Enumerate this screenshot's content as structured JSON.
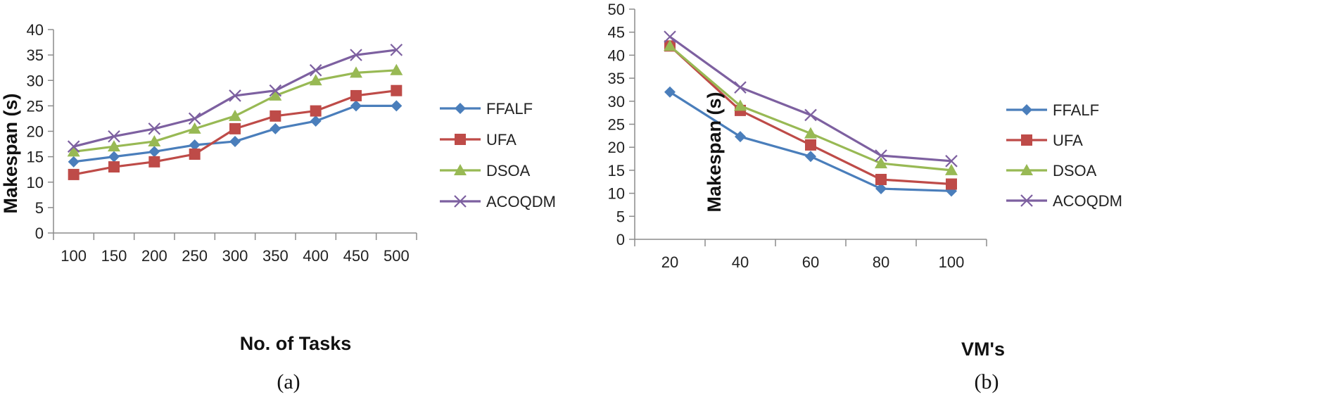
{
  "colors": {
    "FFALF": "#4a7ebb",
    "UFA": "#be4b48",
    "DSOA": "#98b954",
    "ACOQDM": "#7d60a0"
  },
  "chart_data": [
    {
      "type": "line",
      "caption": "(a)",
      "xlabel": "No. of Tasks",
      "ylabel": "Makespan (s)",
      "categories": [
        "100",
        "150",
        "200",
        "250",
        "300",
        "350",
        "400",
        "450",
        "500"
      ],
      "ylim": [
        0,
        40
      ],
      "yticks": [
        "0",
        "5",
        "10",
        "15",
        "20",
        "25",
        "30",
        "35",
        "40"
      ],
      "legend_position": "right",
      "grid": false,
      "series": [
        {
          "name": "FFALF",
          "marker": "diamond",
          "values": [
            14,
            15,
            16,
            17.3,
            18,
            20.5,
            22,
            25,
            25
          ]
        },
        {
          "name": "UFA",
          "marker": "square",
          "values": [
            11.5,
            13,
            14,
            15.5,
            20.5,
            23,
            24,
            27,
            28
          ]
        },
        {
          "name": "DSOA",
          "marker": "triangle",
          "values": [
            16,
            17,
            18,
            20.5,
            23,
            27,
            30,
            31.5,
            32
          ]
        },
        {
          "name": "ACOQDM",
          "marker": "x",
          "values": [
            17,
            19,
            20.5,
            22.5,
            27,
            28,
            32,
            35,
            36
          ]
        }
      ]
    },
    {
      "type": "line",
      "caption": "(b)",
      "xlabel": "VM's",
      "ylabel": "Makespan (s)",
      "categories": [
        "20",
        "40",
        "60",
        "80",
        "100"
      ],
      "ylim": [
        0,
        50
      ],
      "yticks": [
        "0",
        "5",
        "10",
        "15",
        "20",
        "25",
        "30",
        "35",
        "40",
        "45",
        "50"
      ],
      "legend_position": "right",
      "grid": false,
      "series": [
        {
          "name": "FFALF",
          "marker": "diamond",
          "values": [
            32,
            22.3,
            18,
            11,
            10.5
          ]
        },
        {
          "name": "UFA",
          "marker": "square",
          "values": [
            42,
            28,
            20.5,
            13,
            12
          ]
        },
        {
          "name": "DSOA",
          "marker": "triangle",
          "values": [
            42,
            29,
            23,
            16.5,
            15
          ]
        },
        {
          "name": "ACOQDM",
          "marker": "x",
          "values": [
            44,
            33,
            27,
            18.2,
            17
          ]
        }
      ]
    }
  ]
}
